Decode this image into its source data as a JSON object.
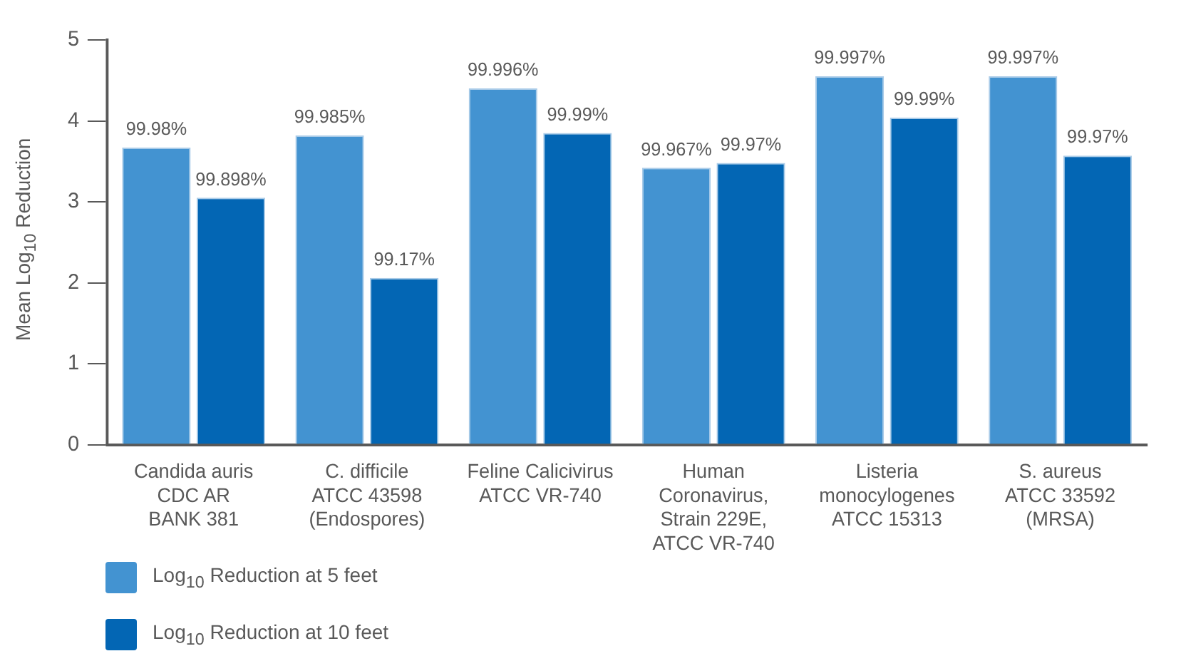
{
  "chart_data": {
    "type": "bar",
    "ylabel": "Mean Log$_{10}$ Reduction",
    "categories": [
      "Candida auris\nCDC AR\nBANK 381",
      "C. difficile\nATCC 43598\n(Endospores)",
      "Feline Calicivirus\nATCC VR-740",
      "Human\nCoronavirus,\nStrain 229E,\nATCC VR-740",
      "Listeria\nmonocylogenes\nATCC 15313",
      "S. aureus\nATCC 33592\n(MRSA)"
    ],
    "series": [
      {
        "name": "Log$_{10}$ Reduction at 5 feet",
        "color": "#4393d1",
        "values": [
          3.67,
          3.82,
          4.4,
          3.42,
          4.55,
          4.55
        ]
      },
      {
        "name": "Log$_{10}$ Reduction at 10 feet",
        "color": "#0366b4",
        "values": [
          3.05,
          2.06,
          3.85,
          3.48,
          4.04,
          3.57
        ]
      }
    ],
    "annotations": [
      {
        "text": "99.98%",
        "x": "Candida auris\nCDC AR\nBANK 381",
        "y": 3.67
      },
      {
        "text": "99.898%",
        "x": "Candida auris\nCDC AR\nBANK 381",
        "y": 3.05
      },
      {
        "text": "99.985%",
        "x": "C. difficile\nATCC 43598\n(Endospores)",
        "y": 3.82
      },
      {
        "text": "99.17%",
        "x": "C. difficile\nATCC 43598\n(Endospores)",
        "y": 2.06
      },
      {
        "text": "99.996%",
        "x": "Feline Calicivirus\nATCC VR-740",
        "y": 4.4
      },
      {
        "text": "99.99%",
        "x": "Feline Calicivirus\nATCC VR-740",
        "y": 3.85
      },
      {
        "text": "99.967%",
        "x": "Human\nCoronavirus,\nStrain 229E,\nATCC VR-740",
        "y": 3.42
      },
      {
        "text": "99.97%",
        "x": "Human\nCoronavirus,\nStrain 229E,\nATCC VR-740",
        "y": 3.48
      },
      {
        "text": "99.997%",
        "x": "Listeria\nmonocylogenes\nATCC 15313",
        "y": 4.55
      },
      {
        "text": "99.99%",
        "x": "Listeria\nmonocylogenes\nATCC 15313",
        "y": 4.04
      },
      {
        "text": "99.997%",
        "x": "S. aureus\nATCC 33592\n(MRSA)",
        "y": 4.55
      },
      {
        "text": "99.97%",
        "x": "S. aureus\nATCC 33592\n(MRSA)",
        "y": 3.57
      }
    ],
    "ylim": [
      0,
      5
    ],
    "yticks": [
      0,
      1,
      2,
      3,
      4,
      5
    ],
    "grid": false,
    "legend": "bottom left"
  }
}
